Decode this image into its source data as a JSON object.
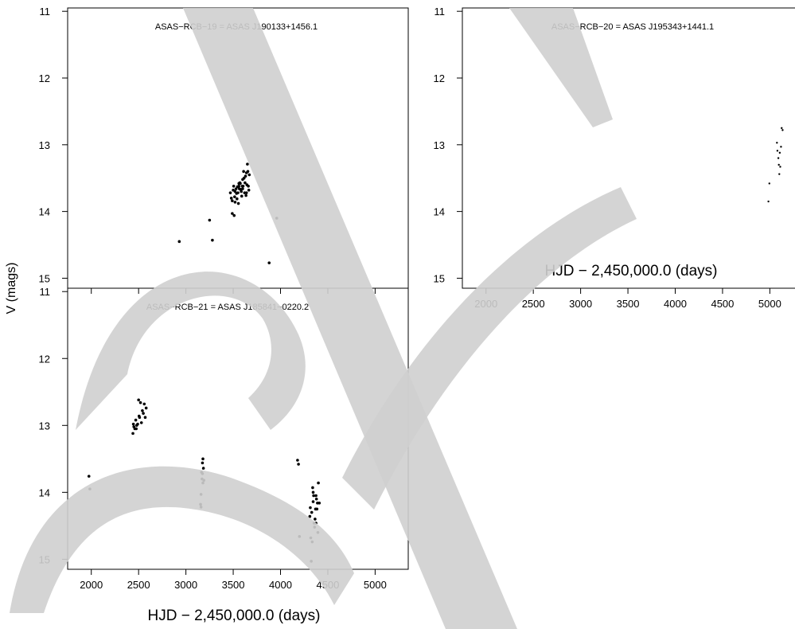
{
  "chart_data": [
    {
      "type": "scatter",
      "title": "ASAS−RCB−19 = ASAS J190133+1456.1",
      "xlabel": "",
      "ylabel": "V (mags)",
      "xlim": [
        1750,
        5350
      ],
      "ylim": [
        15.15,
        10.95
      ],
      "x_ticks": [
        2000,
        2500,
        3000,
        3500,
        4000,
        4500,
        5000
      ],
      "y_ticks": [
        11,
        12,
        13,
        14,
        15
      ],
      "show_x_tick_labels": false,
      "grid": false,
      "series": [
        {
          "x": [
            2930,
            3250,
            3280,
            3470,
            3490,
            3505,
            3510,
            3520,
            3530,
            3540,
            3550,
            3560,
            3570,
            3580,
            3590,
            3600,
            3605,
            3610,
            3620,
            3625,
            3630,
            3640,
            3650,
            3660,
            3670,
            3480,
            3500,
            3515,
            3535,
            3545,
            3555,
            3565,
            3575,
            3585,
            3595,
            3615,
            3635,
            3645,
            3655,
            3665,
            3490,
            3520,
            3560,
            3600,
            3640,
            3880,
            3960
          ],
          "y": [
            14.45,
            14.13,
            14.43,
            13.72,
            14.03,
            13.62,
            14.06,
            13.86,
            13.66,
            13.81,
            13.72,
            13.62,
            13.57,
            13.67,
            13.77,
            13.52,
            13.62,
            13.4,
            13.72,
            13.57,
            13.47,
            13.42,
            13.29,
            13.62,
            13.45,
            13.8,
            13.68,
            13.78,
            13.73,
            13.63,
            13.88,
            13.66,
            13.58,
            13.7,
            13.62,
            13.5,
            13.76,
            13.6,
            13.4,
            13.68,
            13.84,
            13.7,
            13.58,
            13.66,
            13.72,
            14.77,
            14.1
          ]
        }
      ]
    },
    {
      "type": "scatter",
      "title": "ASAS−RCB−20 = ASAS J195343+1441.1",
      "xlabel": "HJD − 2,450,000.0 (days)",
      "ylabel": "",
      "xlim": [
        1750,
        5350
      ],
      "ylim": [
        15.15,
        10.95
      ],
      "x_ticks": [
        2000,
        2500,
        3000,
        3500,
        4000,
        4500,
        5000
      ],
      "y_ticks": [
        11,
        12,
        13,
        14,
        15
      ],
      "show_x_tick_labels": true,
      "grid": false,
      "series": [
        {
          "x": [
            4985,
            4995,
            5075,
            5080,
            5090,
            5095,
            5100,
            5105,
            5110,
            5118,
            5125,
            5135
          ],
          "y": [
            13.85,
            13.58,
            12.97,
            13.09,
            13.2,
            13.3,
            13.44,
            13.12,
            13.33,
            13.03,
            12.75,
            12.78
          ]
        }
      ]
    },
    {
      "type": "scatter",
      "title": "ASAS−RCB−21 = ASAS J185841−0220.2",
      "xlabel": "HJD − 2,450,000.0 (days)",
      "ylabel": "",
      "xlim": [
        1750,
        5350
      ],
      "ylim": [
        15.15,
        10.95
      ],
      "x_ticks": [
        2000,
        2500,
        3000,
        3500,
        4000,
        4500,
        5000
      ],
      "y_ticks": [
        11,
        12,
        13,
        14,
        15
      ],
      "show_x_tick_labels": true,
      "grid": false,
      "series": [
        {
          "x": [
            1975,
            1985,
            2440,
            2450,
            2460,
            2470,
            2480,
            2490,
            2500,
            2510,
            2520,
            2530,
            2540,
            2550,
            2560,
            2570,
            2580,
            2445,
            2475,
            2505,
            3155,
            3160,
            3165,
            3170,
            3175,
            3180,
            3185,
            3190,
            3160,
            3180,
            3175,
            4180,
            4190,
            4200,
            4310,
            4320,
            4330,
            4340,
            4350,
            4360,
            4370,
            4380,
            4390,
            4400,
            4410,
            4325,
            4335,
            4345,
            4355,
            4365,
            4375,
            4385,
            4395,
            4315,
            4345,
            4375
          ],
          "y": [
            13.76,
            13.95,
            13.12,
            13.02,
            13.05,
            12.92,
            13.0,
            12.98,
            12.62,
            12.88,
            12.66,
            12.96,
            12.78,
            12.82,
            12.68,
            12.88,
            12.74,
            12.98,
            13.05,
            12.86,
            14.18,
            14.03,
            13.7,
            13.8,
            13.56,
            13.5,
            13.64,
            13.82,
            14.22,
            13.86,
            13.72,
            13.52,
            13.58,
            14.66,
            14.36,
            14.68,
            14.3,
            13.93,
            14.05,
            14.52,
            14.25,
            14.1,
            14.16,
            13.86,
            14.16,
            15.03,
            14.74,
            14.14,
            14.46,
            14.4,
            14.46,
            14.25,
            14.6,
            14.23,
            14.0,
            14.05
          ]
        }
      ]
    }
  ]
}
